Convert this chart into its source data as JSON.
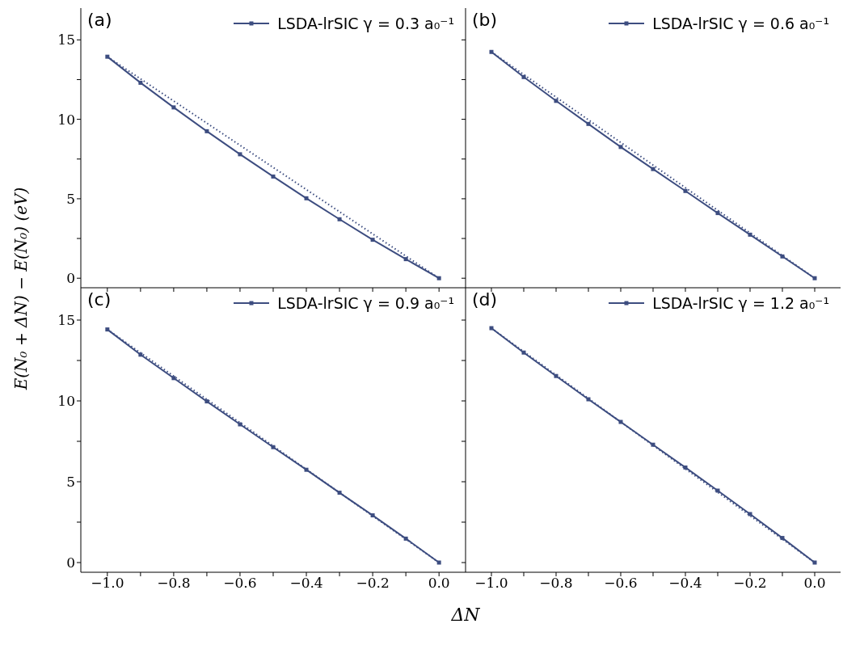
{
  "chart_data": [
    {
      "type": "line",
      "annotations": [
        "(a)"
      ],
      "ylabel": "E(N₀ + ΔN) − E(N₀) (eV)",
      "xlim": [
        -1.08,
        0.08
      ],
      "ylim": [
        -0.6,
        17
      ],
      "xticks": [
        {
          "value": -1,
          "label": null
        },
        {
          "value": -0.9,
          "label": null
        },
        {
          "value": -0.8,
          "label": null
        },
        {
          "value": -0.7,
          "label": null
        },
        {
          "value": -0.6,
          "label": null
        },
        {
          "value": -0.5,
          "label": null
        },
        {
          "value": -0.4,
          "label": null
        },
        {
          "value": -0.3,
          "label": null
        },
        {
          "value": -0.2,
          "label": null
        },
        {
          "value": -0.1,
          "label": null
        },
        {
          "value": 0,
          "label": null
        }
      ],
      "yticks": [
        0,
        {
          "value": 2.5,
          "label": null
        },
        5,
        {
          "value": 7.5,
          "label": null
        },
        10,
        {
          "value": 12.5,
          "label": null
        },
        15
      ],
      "tick_labels": "y",
      "legend": "top right",
      "series": [
        {
          "name": "LSDA-lrSIC γ = 0.3 a₀⁻¹",
          "color": "#3d4d80",
          "marker": "square",
          "line_style": "solid",
          "x": [
            -1,
            -0.9,
            -0.8,
            -0.7,
            -0.6,
            -0.5,
            -0.4,
            -0.3,
            -0.2,
            -0.1,
            0
          ],
          "values": [
            13.94,
            12.3,
            10.75,
            9.25,
            7.8,
            6.4,
            5.03,
            3.71,
            2.42,
            1.2,
            0
          ]
        },
        {
          "color": "#3d4d80",
          "marker": "none",
          "line_style": "dotted",
          "x": [
            -1,
            0
          ],
          "values": [
            13.94,
            0
          ]
        }
      ]
    },
    {
      "type": "line",
      "annotations": [
        "(b)"
      ],
      "xlim": [
        -1.08,
        0.08
      ],
      "ylim": [
        -0.6,
        17
      ],
      "xticks": [
        {
          "value": -1,
          "label": null
        },
        {
          "value": -0.9,
          "label": null
        },
        {
          "value": -0.8,
          "label": null
        },
        {
          "value": -0.7,
          "label": null
        },
        {
          "value": -0.6,
          "label": null
        },
        {
          "value": -0.5,
          "label": null
        },
        {
          "value": -0.4,
          "label": null
        },
        {
          "value": -0.3,
          "label": null
        },
        {
          "value": -0.2,
          "label": null
        },
        {
          "value": -0.1,
          "label": null
        },
        {
          "value": 0,
          "label": null
        }
      ],
      "yticks": [
        {
          "value": 0,
          "label": null
        },
        {
          "value": 2.5,
          "label": null
        },
        {
          "value": 5,
          "label": null
        },
        {
          "value": 7.5,
          "label": null
        },
        {
          "value": 10,
          "label": null
        },
        {
          "value": 12.5,
          "label": null
        },
        {
          "value": 15,
          "label": null
        }
      ],
      "tick_labels": false,
      "legend": "top right",
      "series": [
        {
          "name": "LSDA-lrSIC γ = 0.6 a₀⁻¹",
          "color": "#3d4d80",
          "marker": "square",
          "line_style": "solid",
          "x": [
            -1,
            -0.9,
            -0.8,
            -0.7,
            -0.6,
            -0.5,
            -0.4,
            -0.3,
            -0.2,
            -0.1,
            0
          ],
          "values": [
            14.24,
            12.66,
            11.16,
            9.71,
            8.26,
            6.87,
            5.49,
            4.1,
            2.74,
            1.37,
            0
          ]
        },
        {
          "color": "#3d4d80",
          "marker": "none",
          "line_style": "dotted",
          "x": [
            -1,
            0
          ],
          "values": [
            14.24,
            0
          ]
        }
      ]
    },
    {
      "type": "line",
      "annotations": [
        "(c)"
      ],
      "xlabel": "ΔN",
      "xlim": [
        -1.08,
        0.08
      ],
      "ylim": [
        -0.6,
        17
      ],
      "xticks": [
        {
          "value": -1,
          "label": "−1.0"
        },
        {
          "value": -0.9,
          "label": null
        },
        {
          "value": -0.8,
          "label": "−0.8"
        },
        {
          "value": -0.7,
          "label": null
        },
        {
          "value": -0.6,
          "label": "−0.6"
        },
        {
          "value": -0.5,
          "label": null
        },
        {
          "value": -0.4,
          "label": "−0.4"
        },
        {
          "value": -0.3,
          "label": null
        },
        {
          "value": -0.2,
          "label": "−0.2"
        },
        {
          "value": -0.1,
          "label": null
        },
        {
          "value": 0,
          "label": "0.0"
        }
      ],
      "yticks": [
        0,
        {
          "value": 2.5,
          "label": null
        },
        5,
        {
          "value": 7.5,
          "label": null
        },
        10,
        {
          "value": 12.5,
          "label": null
        },
        15
      ],
      "legend": "top right",
      "series": [
        {
          "name": "LSDA-lrSIC γ = 0.9 a₀⁻¹",
          "color": "#3d4d80",
          "marker": "square",
          "line_style": "solid",
          "x": [
            -1,
            -0.9,
            -0.8,
            -0.7,
            -0.6,
            -0.5,
            -0.4,
            -0.3,
            -0.2,
            -0.1,
            0
          ],
          "values": [
            14.42,
            12.86,
            11.41,
            9.97,
            8.55,
            7.14,
            5.74,
            4.32,
            2.92,
            1.48,
            0
          ]
        },
        {
          "color": "#3d4d80",
          "marker": "none",
          "line_style": "dotted",
          "x": [
            -1,
            0
          ],
          "values": [
            14.42,
            0
          ]
        }
      ]
    },
    {
      "type": "line",
      "annotations": [
        "(d)"
      ],
      "xlim": [
        -1.08,
        0.08
      ],
      "ylim": [
        -0.6,
        17
      ],
      "xticks": [
        {
          "value": -1,
          "label": "−1.0"
        },
        {
          "value": -0.9,
          "label": null
        },
        {
          "value": -0.8,
          "label": "−0.8"
        },
        {
          "value": -0.7,
          "label": null
        },
        {
          "value": -0.6,
          "label": "−0.6"
        },
        {
          "value": -0.5,
          "label": null
        },
        {
          "value": -0.4,
          "label": "−0.4"
        },
        {
          "value": -0.3,
          "label": null
        },
        {
          "value": -0.2,
          "label": "−0.2"
        },
        {
          "value": -0.1,
          "label": null
        },
        {
          "value": 0,
          "label": "0.0"
        }
      ],
      "yticks": [
        {
          "value": 0,
          "label": null
        },
        {
          "value": 2.5,
          "label": null
        },
        {
          "value": 5,
          "label": null
        },
        {
          "value": 7.5,
          "label": null
        },
        {
          "value": 10,
          "label": null
        },
        {
          "value": 12.5,
          "label": null
        },
        {
          "value": 15,
          "label": null
        }
      ],
      "tick_labels": "x",
      "legend": "top right",
      "series": [
        {
          "name": "LSDA-lrSIC γ = 1.2 a₀⁻¹",
          "color": "#3d4d80",
          "marker": "square",
          "line_style": "solid",
          "x": [
            -1,
            -0.9,
            -0.8,
            -0.7,
            -0.6,
            -0.5,
            -0.4,
            -0.3,
            -0.2,
            -0.1,
            0
          ],
          "values": [
            14.5,
            12.99,
            11.54,
            10.1,
            8.7,
            7.29,
            5.88,
            4.45,
            3.0,
            1.52,
            0
          ]
        },
        {
          "color": "#3d4d80",
          "marker": "none",
          "line_style": "dotted",
          "x": [
            -1,
            0
          ],
          "values": [
            14.5,
            0
          ]
        }
      ]
    }
  ]
}
